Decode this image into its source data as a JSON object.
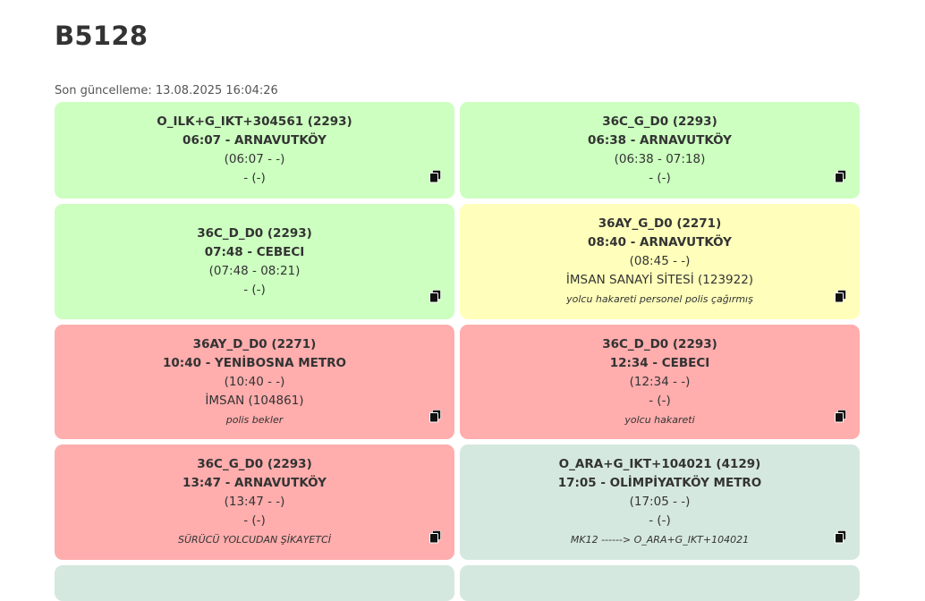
{
  "vehicle_id": "B5128",
  "last_update": "Son güncelleme: 13.08.2025 16:04:26",
  "icons": {
    "copy": "copy-icon"
  },
  "colors": {
    "green": "#ccffc0",
    "yellow": "#ffffbb",
    "red": "#ffadad",
    "teal": "#d5e8df"
  },
  "cards": [
    {
      "route": "O_ILK+G_IKT+304561 (2293)",
      "departure": "06:07 - ARNAVUTKÖY",
      "times": "(06:07 - -)",
      "stop": "- (-)",
      "note": ""
    },
    {
      "route": "36C_G_D0 (2293)",
      "departure": "06:38 - ARNAVUTKÖY",
      "times": "(06:38 - 07:18)",
      "stop": "- (-)",
      "note": ""
    },
    {
      "route": "36C_D_D0 (2293)",
      "departure": "07:48 - CEBECI",
      "times": "(07:48 - 08:21)",
      "stop": "- (-)",
      "note": ""
    },
    {
      "route": "36AY_G_D0 (2271)",
      "departure": "08:40 - ARNAVUTKÖY",
      "times": "(08:45 - -)",
      "stop": "İMSAN SANAYİ SİTESİ (123922)",
      "note": "yolcu hakareti personel polis çağırmış"
    },
    {
      "route": "36AY_D_D0 (2271)",
      "departure": "10:40 - YENİBOSNA METRO",
      "times": "(10:40 - -)",
      "stop": "İMSAN (104861)",
      "note": "polis bekler"
    },
    {
      "route": "36C_D_D0 (2293)",
      "departure": "12:34 - CEBECI",
      "times": "(12:34 - -)",
      "stop": "- (-)",
      "note": "yolcu hakareti"
    },
    {
      "route": "36C_G_D0 (2293)",
      "departure": "13:47 - ARNAVUTKÖY",
      "times": "(13:47 - -)",
      "stop": "- (-)",
      "note": "SÜRÜCÜ YOLCUDAN ŞİKAYETCİ"
    },
    {
      "route": "O_ARA+G_IKT+104021 (4129)",
      "departure": "17:05 - OLİMPİYATKÖY METRO",
      "times": "(17:05 - -)",
      "stop": "- (-)",
      "note": "MK12 ------> O_ARA+G_IKT+104021"
    }
  ]
}
